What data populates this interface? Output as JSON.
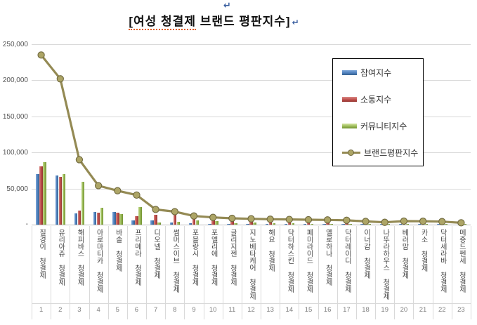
{
  "page": {
    "paragraph_mark": "↵"
  },
  "title": {
    "part1": "[여성 청결제",
    "part2": " 브랜드 평판지수]"
  },
  "chart_data": {
    "type": "bar",
    "subtype": "grouped-bars-with-line",
    "title": "[여성 청결제 브랜드 평판지수]",
    "categories": [
      "질경이 청결제",
      "유리아쥬 청결제",
      "해피바스 청결제",
      "아로마티카 청결제",
      "바솔 청결제",
      "프리메라 청결제",
      "디오넬 청결제",
      "썸머스이브 청결제",
      "포블랑시 청결제",
      "포엘리에 청결제",
      "글리지젠 청결제",
      "지노베타케어 청결제",
      "해요 청결제",
      "닥터하스킨 청결제",
      "페미라이드 청결제",
      "옐로하나 청결제",
      "닥터레이디 청결제",
      "이너감 청결제",
      "나뚜라하우스 청결제",
      "베러맘 청결제",
      "카소 청결제",
      "닥터세라바 청결제",
      "메죵드펜세 청결제"
    ],
    "category_numbers": [
      "1",
      "2",
      "3",
      "4",
      "5",
      "6",
      "7",
      "8",
      "9",
      "10",
      "11",
      "12",
      "13",
      "14",
      "15",
      "16",
      "17",
      "18",
      "19",
      "20",
      "21",
      "22",
      "23"
    ],
    "series": [
      {
        "name": "참여지수",
        "type": "bar",
        "color": "#4F81BD",
        "values": [
          70000,
          68000,
          15500,
          18000,
          18000,
          6000,
          5500,
          2500,
          2000,
          1500,
          1500,
          1200,
          1500,
          1000,
          1000,
          1500,
          1000,
          800,
          800,
          1000,
          800,
          800,
          500
        ]
      },
      {
        "name": "소통지수",
        "type": "bar",
        "color": "#C0504D",
        "values": [
          81000,
          66000,
          19500,
          17000,
          17000,
          12000,
          14000,
          14000,
          9500,
          6500,
          6500,
          4000,
          3000,
          3500,
          3000,
          2500,
          2500,
          2000,
          1500,
          2000,
          2000,
          1500,
          1000
        ]
      },
      {
        "name": "커뮤니티지수",
        "type": "bar",
        "color": "#9BBB59",
        "values": [
          87000,
          70000,
          59000,
          23000,
          15000,
          24000,
          3000,
          4000,
          5500,
          4500,
          2000,
          2500,
          2000,
          2000,
          1500,
          1500,
          1500,
          1200,
          1000,
          1200,
          1000,
          1000,
          800
        ]
      },
      {
        "name": "브랜드평판지수",
        "type": "line",
        "color": "#948A54",
        "values": [
          235000,
          202000,
          90000,
          54000,
          47000,
          41000,
          21000,
          18000,
          12000,
          10000,
          8800,
          8100,
          7500,
          7200,
          6800,
          6500,
          6000,
          4500,
          3200,
          4900,
          4700,
          4200,
          2500
        ]
      }
    ],
    "ylim": [
      0,
      250000
    ],
    "yticks": [
      "250,000",
      "200,000",
      "150,000",
      "100,000",
      "50,000"
    ],
    "ytick_values": [
      250000,
      200000,
      150000,
      100000,
      50000
    ],
    "zero_label": "-",
    "grid": "horizontal",
    "legend_position": "inside-top-right",
    "legend_border_color": "#000000",
    "gridline_color": "#D9D9D9"
  }
}
